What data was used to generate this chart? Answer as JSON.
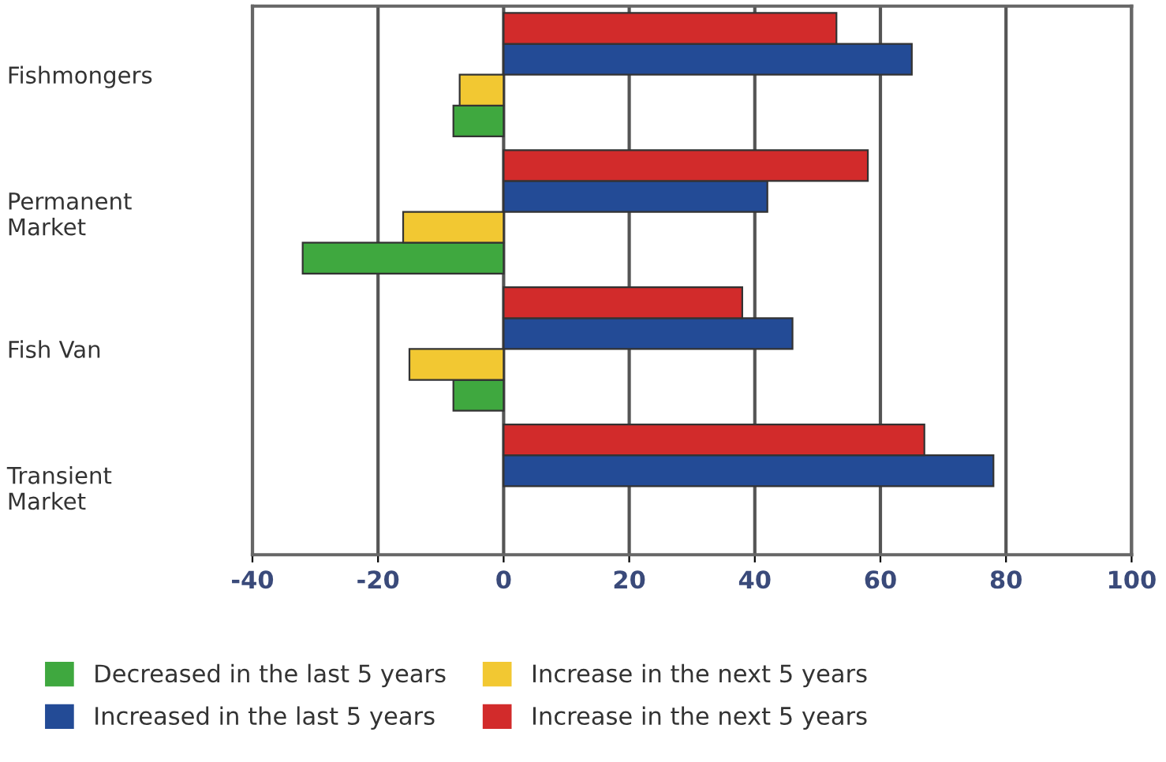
{
  "chart_data": {
    "type": "bar",
    "orientation": "horizontal",
    "categories": [
      "Fishmongers",
      "Permanent\nMarket",
      "Fish Van",
      "Transient\nMarket"
    ],
    "series": [
      {
        "name": "Decreased in the last 5 years",
        "color": "#3fa83f",
        "values": [
          -8,
          -32,
          -8,
          null
        ]
      },
      {
        "name": "Increase in the next 5 years",
        "color": "#f2c832",
        "values": [
          -7,
          -16,
          -15,
          null
        ]
      },
      {
        "name": "Increased in the last 5 years",
        "color": "#234b96",
        "values": [
          65,
          42,
          46,
          78
        ]
      },
      {
        "name": "Increase in the next 5 years",
        "color": "#d22b2b",
        "values": [
          53,
          58,
          38,
          67
        ]
      }
    ],
    "xlim": [
      -40,
      100
    ],
    "xticks": [
      -40,
      -20,
      0,
      20,
      40,
      60,
      80,
      100
    ],
    "grid": "x",
    "legend": "bottom"
  }
}
